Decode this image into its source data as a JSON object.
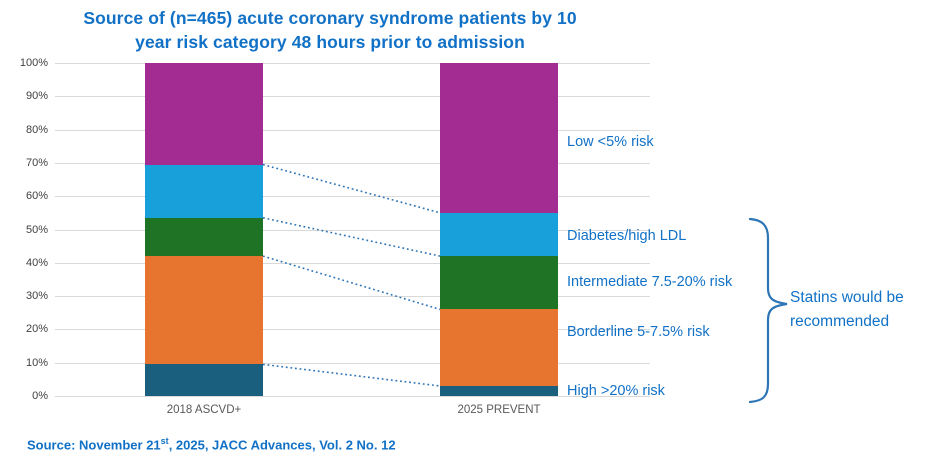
{
  "title": {
    "line1": "Source of (n=465) acute coronary syndrome patients by 10",
    "line2": "year risk category 48 hours prior to admission"
  },
  "annotation": {
    "line1": "Statins would be",
    "line2": "recommended"
  },
  "source_note": {
    "prefix": "Source: November 21",
    "superscript": "st",
    "suffix": ", 2025, JACC Advances, Vol. 2 No. 12"
  },
  "colors": {
    "title_blue": "#1171C6",
    "label_blue": "#1171C6",
    "brace_blue": "#2E75B6",
    "connector_blue": "#2E75B6",
    "gridline_gray": "#D9D9D9",
    "tick_gray": "#404040",
    "axis_label_gray": "#595959"
  },
  "chart_data": {
    "type": "bar",
    "stacked": true,
    "title": "Source of (n=465) acute coronary syndrome patients by 10 year risk category 48 hours prior to admission",
    "categories": [
      "2018 ASCVD+",
      "2025 PREVENT"
    ],
    "segments": [
      {
        "name": "High >20% risk",
        "color": "#1A5F7E",
        "values": [
          9.5,
          3
        ]
      },
      {
        "name": "Borderline 5-7.5% risk",
        "color": "#E8752F",
        "values": [
          32.5,
          23
        ]
      },
      {
        "name": "Intermediate 7.5-20% risk",
        "color": "#1F7324",
        "values": [
          11.5,
          16
        ]
      },
      {
        "name": "Diabetes/high LDL",
        "color": "#18A0DB",
        "values": [
          16,
          13
        ]
      },
      {
        "name": "Low <5% risk",
        "color": "#A32C93",
        "values": [
          30.5,
          45
        ]
      }
    ],
    "ylim": [
      0,
      100
    ],
    "yticks": [
      "0%",
      "10%",
      "20%",
      "30%",
      "40%",
      "50%",
      "60%",
      "70%",
      "80%",
      "90%",
      "100%"
    ],
    "grid": true,
    "legend_position": "labels right of second bar, top to bottom: Low, Diabetes, Intermediate, Borderline, High",
    "connectors": "dotted lines join cumulative segment boundaries of the two bars",
    "annotation_grouping": "curly brace spans Diabetes/Intermediate/Borderline/High labels = Statins would be recommended"
  }
}
